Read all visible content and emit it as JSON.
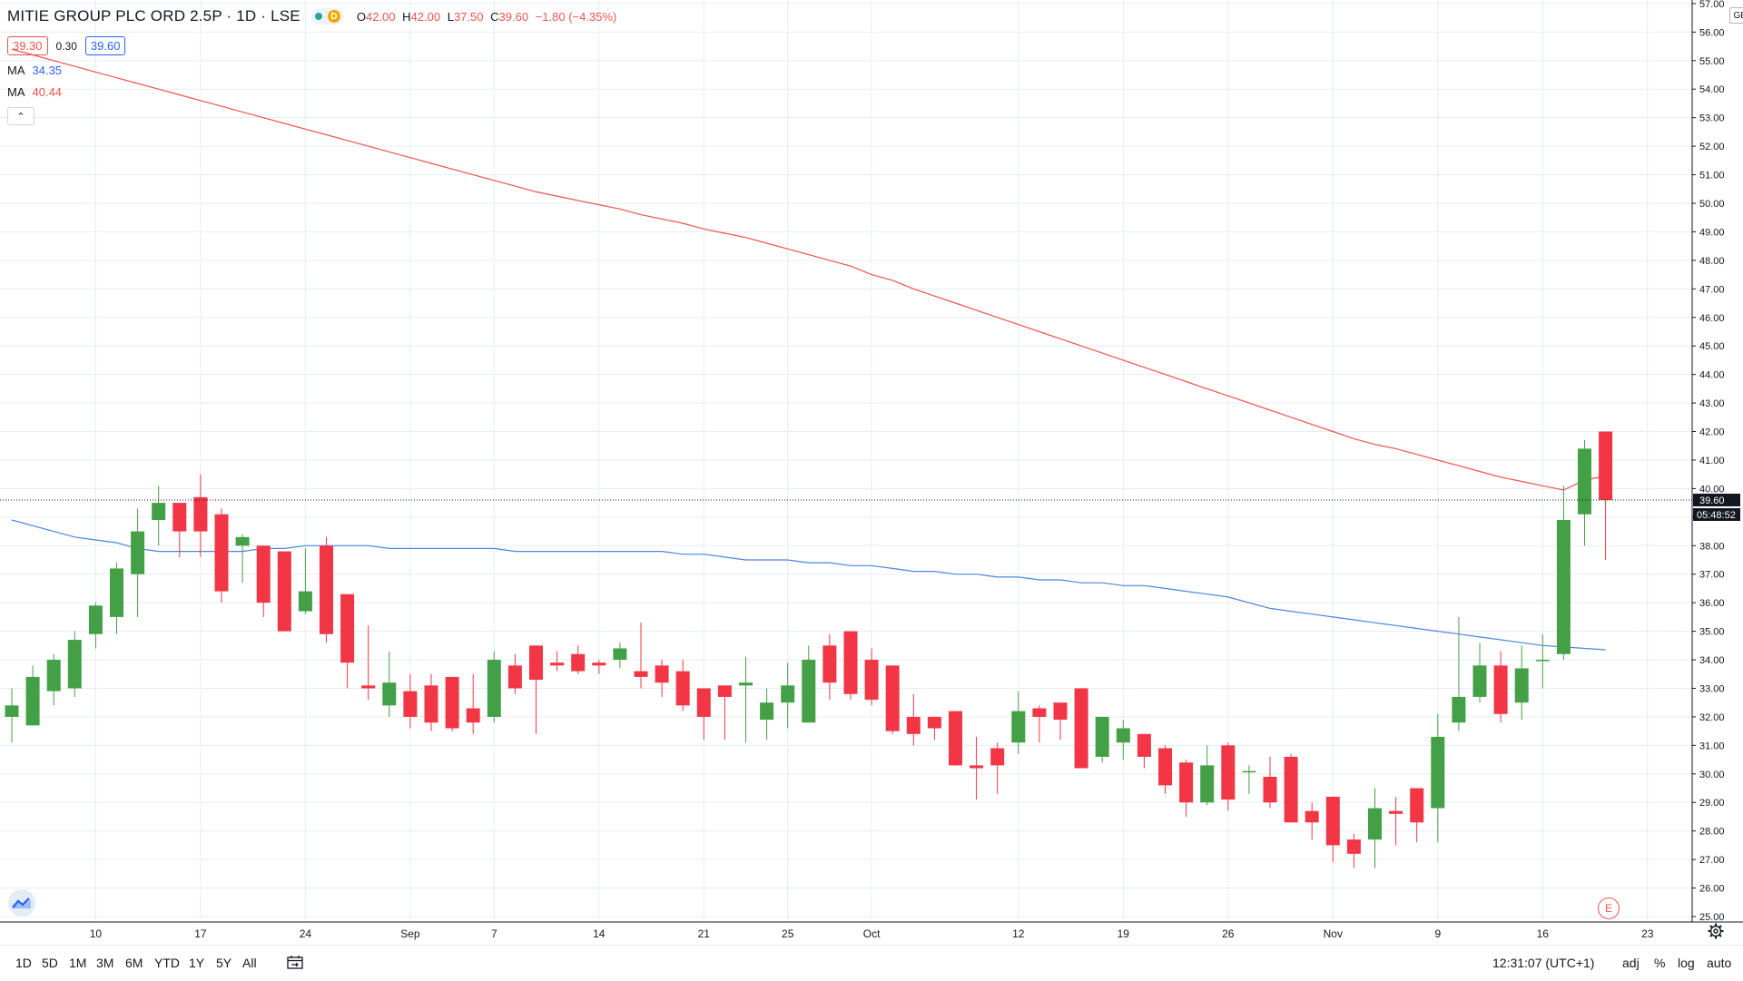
{
  "header": {
    "symbol": "MITIE GROUP PLC ORD 2.5P · 1D · LSE",
    "d_badge": "D",
    "ohlc": [
      {
        "k": "O",
        "v": "42.00"
      },
      {
        "k": "H",
        "v": "42.00"
      },
      {
        "k": "L",
        "v": "37.50"
      },
      {
        "k": "C",
        "v": "39.60"
      }
    ],
    "change": "−1.80 (−4.35%)"
  },
  "quote": {
    "bid": "39.30",
    "spread": "0.30",
    "ask": "39.60"
  },
  "indicators": [
    {
      "label": "MA",
      "value": "34.35",
      "color": "#2962ff"
    },
    {
      "label": "MA",
      "value": "40.44",
      "color": "#ef5350"
    }
  ],
  "collapse_icon": "chevron-up-icon",
  "currency": "GBX",
  "earnings_marker": "E",
  "last_price_label": "39.60",
  "countdown_label": "05:48:52",
  "colors": {
    "up": "#43a047",
    "down": "#f23645",
    "ma_fast": "#4a86d8",
    "ma_slow": "#f0524a",
    "grid": "#e6edf3"
  },
  "toolbar": {
    "ranges": [
      "1D",
      "5D",
      "1M",
      "3M",
      "6M",
      "YTD",
      "1Y",
      "5Y",
      "All"
    ],
    "clock": "12:31:07 (UTC+1)",
    "options": [
      "adj",
      "%",
      "log",
      "auto"
    ]
  },
  "chart_data": {
    "type": "candlestick",
    "y_axis": {
      "min": 25,
      "max": 57,
      "step": 1,
      "side": "right",
      "unit": "GBX"
    },
    "y_tick_labels": [
      "57.00",
      "56.00",
      "55.00",
      "54.00",
      "53.00",
      "52.00",
      "51.00",
      "50.00",
      "49.00",
      "48.00",
      "47.00",
      "46.00",
      "45.00",
      "44.00",
      "43.00",
      "42.00",
      "41.00",
      "40.00",
      "39.00",
      "38.00",
      "37.00",
      "36.00",
      "35.00",
      "34.00",
      "33.00",
      "32.00",
      "31.00",
      "30.00",
      "29.00",
      "28.00",
      "27.00",
      "26.00",
      "25.00"
    ],
    "x_tick_labels": [
      {
        "label": "10",
        "i": 4
      },
      {
        "label": "17",
        "i": 9
      },
      {
        "label": "24",
        "i": 14
      },
      {
        "label": "Sep",
        "i": 19
      },
      {
        "label": "7",
        "i": 23
      },
      {
        "label": "14",
        "i": 28
      },
      {
        "label": "21",
        "i": 33
      },
      {
        "label": "25",
        "i": 37
      },
      {
        "label": "Oct",
        "i": 41
      },
      {
        "label": "12",
        "i": 48
      },
      {
        "label": "19",
        "i": 53
      },
      {
        "label": "26",
        "i": 58
      },
      {
        "label": "Nov",
        "i": 63
      },
      {
        "label": "9",
        "i": 68
      },
      {
        "label": "16",
        "i": 73
      },
      {
        "label": "23",
        "i": 78
      }
    ],
    "grid": true,
    "last_price": 39.6,
    "candles": [
      {
        "o": 32.0,
        "h": 33.0,
        "l": 31.1,
        "c": 32.4
      },
      {
        "o": 31.7,
        "h": 33.8,
        "l": 31.7,
        "c": 33.4
      },
      {
        "o": 32.9,
        "h": 34.2,
        "l": 32.4,
        "c": 34.0
      },
      {
        "o": 33.0,
        "h": 35.0,
        "l": 32.7,
        "c": 34.7
      },
      {
        "o": 34.9,
        "h": 36.0,
        "l": 34.4,
        "c": 35.9
      },
      {
        "o": 35.5,
        "h": 37.4,
        "l": 34.9,
        "c": 37.2
      },
      {
        "o": 37.0,
        "h": 39.3,
        "l": 35.5,
        "c": 38.5
      },
      {
        "o": 38.9,
        "h": 40.1,
        "l": 38.0,
        "c": 39.5
      },
      {
        "o": 39.5,
        "h": 39.5,
        "l": 37.6,
        "c": 38.5
      },
      {
        "o": 39.7,
        "h": 40.5,
        "l": 37.6,
        "c": 38.5
      },
      {
        "o": 39.1,
        "h": 39.3,
        "l": 36.0,
        "c": 36.4
      },
      {
        "o": 38.0,
        "h": 38.4,
        "l": 36.7,
        "c": 38.3
      },
      {
        "o": 38.0,
        "h": 38.0,
        "l": 35.5,
        "c": 36.0
      },
      {
        "o": 37.8,
        "h": 37.8,
        "l": 35.0,
        "c": 35.0
      },
      {
        "o": 35.7,
        "h": 37.9,
        "l": 35.6,
        "c": 36.4
      },
      {
        "o": 38.0,
        "h": 38.3,
        "l": 34.6,
        "c": 34.9
      },
      {
        "o": 36.3,
        "h": 36.3,
        "l": 33.0,
        "c": 33.9
      },
      {
        "o": 33.1,
        "h": 35.2,
        "l": 32.6,
        "c": 33.0
      },
      {
        "o": 32.4,
        "h": 34.3,
        "l": 32.0,
        "c": 33.2
      },
      {
        "o": 32.9,
        "h": 33.5,
        "l": 31.6,
        "c": 32.0
      },
      {
        "o": 33.1,
        "h": 33.5,
        "l": 31.5,
        "c": 31.8
      },
      {
        "o": 33.4,
        "h": 33.4,
        "l": 31.5,
        "c": 31.6
      },
      {
        "o": 32.3,
        "h": 33.5,
        "l": 31.4,
        "c": 31.8
      },
      {
        "o": 32.0,
        "h": 34.3,
        "l": 31.8,
        "c": 34.0
      },
      {
        "o": 33.8,
        "h": 34.2,
        "l": 32.8,
        "c": 33.0
      },
      {
        "o": 34.5,
        "h": 34.5,
        "l": 31.4,
        "c": 33.3
      },
      {
        "o": 33.9,
        "h": 34.3,
        "l": 33.6,
        "c": 33.8
      },
      {
        "o": 34.2,
        "h": 34.5,
        "l": 33.5,
        "c": 33.6
      },
      {
        "o": 33.9,
        "h": 34.0,
        "l": 33.5,
        "c": 33.8
      },
      {
        "o": 34.0,
        "h": 34.6,
        "l": 33.7,
        "c": 34.4
      },
      {
        "o": 33.6,
        "h": 35.3,
        "l": 33.0,
        "c": 33.4
      },
      {
        "o": 33.8,
        "h": 34.0,
        "l": 32.7,
        "c": 33.2
      },
      {
        "o": 33.6,
        "h": 34.0,
        "l": 32.2,
        "c": 32.4
      },
      {
        "o": 33.0,
        "h": 33.0,
        "l": 31.2,
        "c": 32.0
      },
      {
        "o": 33.1,
        "h": 33.1,
        "l": 31.2,
        "c": 32.7
      },
      {
        "o": 33.1,
        "h": 34.1,
        "l": 31.1,
        "c": 33.2
      },
      {
        "o": 31.9,
        "h": 33.0,
        "l": 31.2,
        "c": 32.5
      },
      {
        "o": 32.5,
        "h": 33.9,
        "l": 31.6,
        "c": 33.1
      },
      {
        "o": 31.8,
        "h": 34.5,
        "l": 31.8,
        "c": 34.0
      },
      {
        "o": 34.5,
        "h": 34.9,
        "l": 32.6,
        "c": 33.2
      },
      {
        "o": 35.0,
        "h": 35.0,
        "l": 32.6,
        "c": 32.8
      },
      {
        "o": 34.0,
        "h": 34.4,
        "l": 32.4,
        "c": 32.6
      },
      {
        "o": 33.8,
        "h": 33.8,
        "l": 31.4,
        "c": 31.5
      },
      {
        "o": 32.0,
        "h": 32.8,
        "l": 31.0,
        "c": 31.4
      },
      {
        "o": 32.0,
        "h": 32.0,
        "l": 31.2,
        "c": 31.6
      },
      {
        "o": 32.2,
        "h": 32.2,
        "l": 30.3,
        "c": 30.3
      },
      {
        "o": 30.3,
        "h": 31.3,
        "l": 29.1,
        "c": 30.2
      },
      {
        "o": 30.9,
        "h": 31.1,
        "l": 29.3,
        "c": 30.3
      },
      {
        "o": 31.1,
        "h": 32.9,
        "l": 30.7,
        "c": 32.2
      },
      {
        "o": 32.3,
        "h": 32.4,
        "l": 31.1,
        "c": 32.0
      },
      {
        "o": 32.5,
        "h": 32.5,
        "l": 31.2,
        "c": 31.9
      },
      {
        "o": 33.0,
        "h": 33.0,
        "l": 30.2,
        "c": 30.2
      },
      {
        "o": 30.6,
        "h": 32.0,
        "l": 30.4,
        "c": 32.0
      },
      {
        "o": 31.1,
        "h": 31.9,
        "l": 30.5,
        "c": 31.6
      },
      {
        "o": 31.4,
        "h": 31.4,
        "l": 30.2,
        "c": 30.6
      },
      {
        "o": 30.9,
        "h": 31.0,
        "l": 29.3,
        "c": 29.6
      },
      {
        "o": 30.4,
        "h": 30.5,
        "l": 28.5,
        "c": 29.0
      },
      {
        "o": 29.0,
        "h": 31.0,
        "l": 28.9,
        "c": 30.3
      },
      {
        "o": 31.0,
        "h": 31.1,
        "l": 28.7,
        "c": 29.1
      },
      {
        "o": 30.1,
        "h": 30.3,
        "l": 29.3,
        "c": 30.1
      },
      {
        "o": 29.9,
        "h": 30.6,
        "l": 28.8,
        "c": 29.0
      },
      {
        "o": 30.6,
        "h": 30.7,
        "l": 28.3,
        "c": 28.3
      },
      {
        "o": 28.7,
        "h": 29.0,
        "l": 27.7,
        "c": 28.3
      },
      {
        "o": 29.2,
        "h": 29.2,
        "l": 26.9,
        "c": 27.5
      },
      {
        "o": 27.7,
        "h": 27.9,
        "l": 26.7,
        "c": 27.2
      },
      {
        "o": 27.7,
        "h": 29.5,
        "l": 26.7,
        "c": 28.8
      },
      {
        "o": 28.7,
        "h": 29.2,
        "l": 27.5,
        "c": 28.6
      },
      {
        "o": 29.5,
        "h": 29.5,
        "l": 27.6,
        "c": 28.3
      },
      {
        "o": 28.8,
        "h": 32.1,
        "l": 27.6,
        "c": 31.3
      },
      {
        "o": 31.8,
        "h": 35.5,
        "l": 31.5,
        "c": 32.7
      },
      {
        "o": 32.7,
        "h": 34.6,
        "l": 32.5,
        "c": 33.8
      },
      {
        "o": 33.8,
        "h": 34.3,
        "l": 31.8,
        "c": 32.1
      },
      {
        "o": 32.5,
        "h": 34.5,
        "l": 31.9,
        "c": 33.7
      },
      {
        "o": 34.0,
        "h": 34.9,
        "l": 33.0,
        "c": 34.0
      },
      {
        "o": 34.2,
        "h": 40.1,
        "l": 34.0,
        "c": 38.9
      },
      {
        "o": 39.1,
        "h": 41.7,
        "l": 38.0,
        "c": 41.4
      },
      {
        "o": 42.0,
        "h": 42.0,
        "l": 37.5,
        "c": 39.6
      }
    ],
    "ma_fast": [
      38.9,
      38.7,
      38.5,
      38.3,
      38.2,
      38.1,
      37.9,
      37.8,
      37.8,
      37.8,
      37.8,
      37.8,
      37.9,
      37.9,
      38.0,
      38.0,
      38.0,
      38.0,
      37.9,
      37.9,
      37.9,
      37.9,
      37.9,
      37.9,
      37.8,
      37.8,
      37.8,
      37.8,
      37.8,
      37.8,
      37.8,
      37.8,
      37.7,
      37.7,
      37.6,
      37.5,
      37.5,
      37.5,
      37.4,
      37.4,
      37.3,
      37.3,
      37.2,
      37.1,
      37.1,
      37.0,
      37.0,
      36.9,
      36.9,
      36.8,
      36.8,
      36.7,
      36.7,
      36.6,
      36.6,
      36.5,
      36.4,
      36.3,
      36.2,
      36.0,
      35.8,
      35.7,
      35.6,
      35.5,
      35.4,
      35.3,
      35.2,
      35.1,
      35.0,
      34.9,
      34.8,
      34.7,
      34.6,
      34.5,
      34.45,
      34.4,
      34.35
    ],
    "ma_slow": [
      55.4,
      55.2,
      55.0,
      54.8,
      54.6,
      54.4,
      54.2,
      54.0,
      53.8,
      53.6,
      53.4,
      53.2,
      53.0,
      52.8,
      52.6,
      52.4,
      52.2,
      52.0,
      51.8,
      51.6,
      51.4,
      51.2,
      51.0,
      50.8,
      50.6,
      50.4,
      50.25,
      50.1,
      49.95,
      49.8,
      49.6,
      49.45,
      49.3,
      49.1,
      48.95,
      48.8,
      48.6,
      48.4,
      48.2,
      48.0,
      47.8,
      47.5,
      47.3,
      47.0,
      46.75,
      46.5,
      46.25,
      46.0,
      45.75,
      45.5,
      45.25,
      45.0,
      44.75,
      44.5,
      44.25,
      44.0,
      43.75,
      43.5,
      43.25,
      43.0,
      42.75,
      42.5,
      42.25,
      42.0,
      41.75,
      41.55,
      41.4,
      41.2,
      41.0,
      40.8,
      40.6,
      40.4,
      40.25,
      40.1,
      39.95,
      40.3,
      40.44
    ]
  }
}
